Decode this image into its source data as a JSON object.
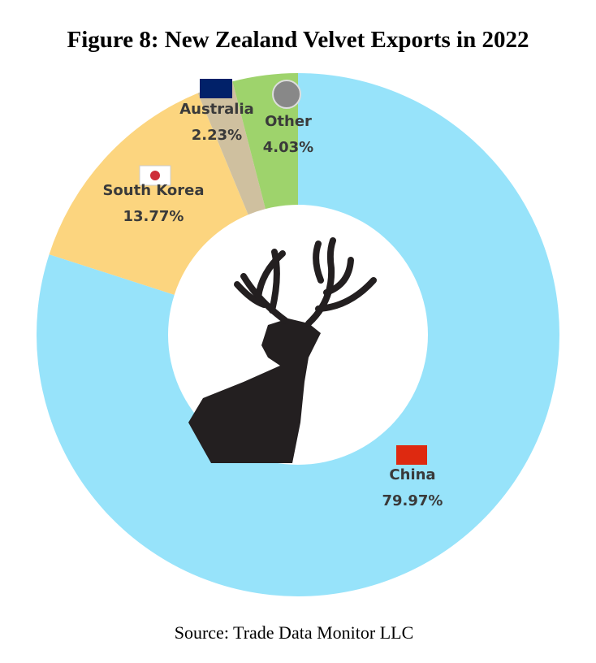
{
  "chart_data": {
    "type": "donut",
    "title": "Figure 8: New Zealand Velvet Exports in 2022",
    "categories": [
      "China",
      "South Korea",
      "Australia",
      "Other"
    ],
    "values": [
      79.97,
      13.77,
      2.23,
      4.03
    ],
    "value_labels": [
      "79.97%",
      "13.77%",
      "2.23%",
      "4.03%"
    ],
    "colors": [
      "#97e3fa",
      "#fcd57f",
      "#cfc09f",
      "#9ed36c"
    ],
    "source": "Source: Trade Data Monitor LLC"
  }
}
